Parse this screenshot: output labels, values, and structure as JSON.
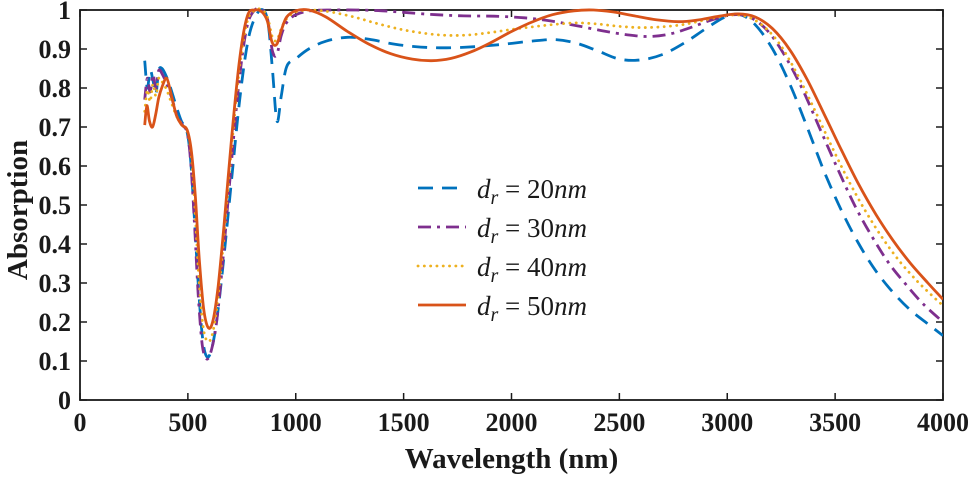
{
  "style": {
    "background": "#ffffff",
    "axis_color": "#1a1a1a",
    "text_color": "#1a1a1a"
  },
  "chart_data": {
    "type": "line",
    "title": "",
    "xlabel": "Wavelength (nm)",
    "ylabel": "Absorption",
    "xlim": [
      0,
      4000
    ],
    "ylim": [
      0,
      1
    ],
    "xticks": [
      0,
      500,
      1000,
      1500,
      2000,
      2500,
      3000,
      3500,
      4000
    ],
    "xtick_labels": [
      "0",
      "500",
      "1000",
      "1500",
      "2000",
      "2500",
      "3000",
      "3500",
      "4000"
    ],
    "yticks": [
      0,
      0.1,
      0.2,
      0.3,
      0.4,
      0.5,
      0.6,
      0.7,
      0.8,
      0.9,
      1
    ],
    "ytick_labels": [
      "0",
      "0.1",
      "0.2",
      "0.3",
      "0.4",
      "0.5",
      "0.6",
      "0.7",
      "0.8",
      "0.9",
      "1"
    ],
    "grid": false,
    "legend": {
      "border": false,
      "position": "center"
    },
    "series": [
      {
        "id": "dr-20nm",
        "name": "dr = 20nm",
        "color": "#0072BD",
        "style": "dashed",
        "legend": {
          "symbol": "d",
          "subscript": "r",
          "number": "20",
          "unit": "nm"
        },
        "points": [
          [
            300,
            0.87
          ],
          [
            312,
            0.8
          ],
          [
            325,
            0.845
          ],
          [
            338,
            0.82
          ],
          [
            352,
            0.785
          ],
          [
            365,
            0.845
          ],
          [
            380,
            0.85
          ],
          [
            400,
            0.83
          ],
          [
            420,
            0.8
          ],
          [
            445,
            0.755
          ],
          [
            470,
            0.715
          ],
          [
            495,
            0.69
          ],
          [
            512,
            0.62
          ],
          [
            530,
            0.47
          ],
          [
            550,
            0.28
          ],
          [
            570,
            0.15
          ],
          [
            590,
            0.11
          ],
          [
            612,
            0.135
          ],
          [
            635,
            0.21
          ],
          [
            662,
            0.34
          ],
          [
            700,
            0.55
          ],
          [
            740,
            0.77
          ],
          [
            778,
            0.92
          ],
          [
            815,
            0.985
          ],
          [
            848,
            1.0
          ],
          [
            872,
            0.965
          ],
          [
            893,
            0.84
          ],
          [
            913,
            0.715
          ],
          [
            933,
            0.78
          ],
          [
            958,
            0.855
          ],
          [
            1000,
            0.875
          ],
          [
            1060,
            0.9
          ],
          [
            1140,
            0.92
          ],
          [
            1240,
            0.93
          ],
          [
            1340,
            0.925
          ],
          [
            1460,
            0.912
          ],
          [
            1580,
            0.905
          ],
          [
            1700,
            0.903
          ],
          [
            1830,
            0.906
          ],
          [
            1960,
            0.912
          ],
          [
            2090,
            0.92
          ],
          [
            2200,
            0.924
          ],
          [
            2300,
            0.915
          ],
          [
            2400,
            0.895
          ],
          [
            2500,
            0.874
          ],
          [
            2600,
            0.872
          ],
          [
            2700,
            0.886
          ],
          [
            2800,
            0.915
          ],
          [
            2900,
            0.952
          ],
          [
            2990,
            0.982
          ],
          [
            3060,
            0.988
          ],
          [
            3130,
            0.962
          ],
          [
            3210,
            0.9
          ],
          [
            3290,
            0.81
          ],
          [
            3370,
            0.7
          ],
          [
            3450,
            0.585
          ],
          [
            3530,
            0.485
          ],
          [
            3610,
            0.4
          ],
          [
            3690,
            0.33
          ],
          [
            3770,
            0.275
          ],
          [
            3850,
            0.23
          ],
          [
            3930,
            0.195
          ],
          [
            4000,
            0.165
          ]
        ]
      },
      {
        "id": "dr-30nm",
        "name": "dr = 30nm",
        "color": "#7E2F8E",
        "style": "dash-dot",
        "legend": {
          "symbol": "d",
          "subscript": "r",
          "number": "30",
          "unit": "nm"
        },
        "points": [
          [
            300,
            0.77
          ],
          [
            312,
            0.825
          ],
          [
            325,
            0.79
          ],
          [
            338,
            0.835
          ],
          [
            352,
            0.8
          ],
          [
            365,
            0.845
          ],
          [
            382,
            0.835
          ],
          [
            402,
            0.81
          ],
          [
            425,
            0.775
          ],
          [
            450,
            0.73
          ],
          [
            475,
            0.705
          ],
          [
            497,
            0.685
          ],
          [
            513,
            0.61
          ],
          [
            530,
            0.46
          ],
          [
            548,
            0.27
          ],
          [
            567,
            0.14
          ],
          [
            588,
            0.105
          ],
          [
            610,
            0.13
          ],
          [
            633,
            0.2
          ],
          [
            660,
            0.345
          ],
          [
            698,
            0.585
          ],
          [
            736,
            0.81
          ],
          [
            773,
            0.955
          ],
          [
            810,
            1.0
          ],
          [
            845,
            1.0
          ],
          [
            870,
            0.975
          ],
          [
            892,
            0.895
          ],
          [
            912,
            0.885
          ],
          [
            933,
            0.935
          ],
          [
            958,
            0.968
          ],
          [
            1000,
            0.988
          ],
          [
            1070,
            0.998
          ],
          [
            1160,
            1.0
          ],
          [
            1280,
            1.0
          ],
          [
            1400,
            0.998
          ],
          [
            1520,
            0.993
          ],
          [
            1650,
            0.988
          ],
          [
            1780,
            0.985
          ],
          [
            1920,
            0.984
          ],
          [
            2060,
            0.98
          ],
          [
            2180,
            0.972
          ],
          [
            2300,
            0.96
          ],
          [
            2420,
            0.947
          ],
          [
            2530,
            0.937
          ],
          [
            2630,
            0.932
          ],
          [
            2730,
            0.938
          ],
          [
            2830,
            0.955
          ],
          [
            2930,
            0.975
          ],
          [
            3030,
            0.988
          ],
          [
            3110,
            0.98
          ],
          [
            3190,
            0.945
          ],
          [
            3270,
            0.88
          ],
          [
            3350,
            0.795
          ],
          [
            3430,
            0.695
          ],
          [
            3510,
            0.595
          ],
          [
            3590,
            0.5
          ],
          [
            3670,
            0.42
          ],
          [
            3750,
            0.35
          ],
          [
            3830,
            0.295
          ],
          [
            3910,
            0.245
          ],
          [
            4000,
            0.2
          ]
        ]
      },
      {
        "id": "dr-40nm",
        "name": "dr = 40nm",
        "color": "#EDB120",
        "style": "dotted",
        "legend": {
          "symbol": "d",
          "subscript": "r",
          "number": "40",
          "unit": "nm"
        },
        "points": [
          [
            300,
            0.74
          ],
          [
            312,
            0.795
          ],
          [
            325,
            0.765
          ],
          [
            338,
            0.81
          ],
          [
            352,
            0.78
          ],
          [
            365,
            0.825
          ],
          [
            382,
            0.815
          ],
          [
            402,
            0.795
          ],
          [
            425,
            0.76
          ],
          [
            450,
            0.725
          ],
          [
            475,
            0.705
          ],
          [
            497,
            0.69
          ],
          [
            515,
            0.63
          ],
          [
            532,
            0.5
          ],
          [
            550,
            0.32
          ],
          [
            570,
            0.19
          ],
          [
            592,
            0.15
          ],
          [
            614,
            0.17
          ],
          [
            637,
            0.25
          ],
          [
            664,
            0.4
          ],
          [
            700,
            0.63
          ],
          [
            738,
            0.845
          ],
          [
            775,
            0.97
          ],
          [
            812,
            1.0
          ],
          [
            845,
            1.0
          ],
          [
            870,
            0.98
          ],
          [
            892,
            0.93
          ],
          [
            912,
            0.922
          ],
          [
            933,
            0.952
          ],
          [
            958,
            0.978
          ],
          [
            1000,
            0.995
          ],
          [
            1070,
            1.0
          ],
          [
            1160,
            0.995
          ],
          [
            1270,
            0.982
          ],
          [
            1380,
            0.965
          ],
          [
            1490,
            0.95
          ],
          [
            1600,
            0.94
          ],
          [
            1700,
            0.935
          ],
          [
            1800,
            0.936
          ],
          [
            1900,
            0.942
          ],
          [
            2000,
            0.95
          ],
          [
            2100,
            0.957
          ],
          [
            2200,
            0.963
          ],
          [
            2300,
            0.967
          ],
          [
            2400,
            0.964
          ],
          [
            2500,
            0.958
          ],
          [
            2600,
            0.955
          ],
          [
            2700,
            0.957
          ],
          [
            2800,
            0.963
          ],
          [
            2900,
            0.975
          ],
          [
            3000,
            0.986
          ],
          [
            3080,
            0.985
          ],
          [
            3160,
            0.962
          ],
          [
            3240,
            0.915
          ],
          [
            3320,
            0.84
          ],
          [
            3400,
            0.75
          ],
          [
            3480,
            0.655
          ],
          [
            3560,
            0.565
          ],
          [
            3640,
            0.485
          ],
          [
            3720,
            0.415
          ],
          [
            3800,
            0.355
          ],
          [
            3880,
            0.305
          ],
          [
            3960,
            0.262
          ],
          [
            4000,
            0.242
          ]
        ]
      },
      {
        "id": "dr-50nm",
        "name": "dr = 50nm",
        "color": "#D95319",
        "style": "solid",
        "legend": {
          "symbol": "d",
          "subscript": "r",
          "number": "50",
          "unit": "nm"
        },
        "points": [
          [
            300,
            0.705
          ],
          [
            310,
            0.755
          ],
          [
            322,
            0.715
          ],
          [
            336,
            0.7
          ],
          [
            350,
            0.73
          ],
          [
            365,
            0.775
          ],
          [
            382,
            0.805
          ],
          [
            402,
            0.825
          ],
          [
            422,
            0.785
          ],
          [
            447,
            0.73
          ],
          [
            472,
            0.705
          ],
          [
            497,
            0.692
          ],
          [
            517,
            0.635
          ],
          [
            535,
            0.52
          ],
          [
            553,
            0.36
          ],
          [
            573,
            0.235
          ],
          [
            595,
            0.185
          ],
          [
            617,
            0.205
          ],
          [
            640,
            0.29
          ],
          [
            668,
            0.45
          ],
          [
            704,
            0.68
          ],
          [
            740,
            0.875
          ],
          [
            776,
            0.985
          ],
          [
            812,
            1.0
          ],
          [
            843,
            0.995
          ],
          [
            868,
            0.972
          ],
          [
            890,
            0.918
          ],
          [
            912,
            0.912
          ],
          [
            933,
            0.948
          ],
          [
            958,
            0.982
          ],
          [
            1000,
            0.998
          ],
          [
            1060,
            1.0
          ],
          [
            1140,
            0.982
          ],
          [
            1240,
            0.945
          ],
          [
            1340,
            0.912
          ],
          [
            1440,
            0.888
          ],
          [
            1540,
            0.874
          ],
          [
            1630,
            0.87
          ],
          [
            1720,
            0.876
          ],
          [
            1810,
            0.892
          ],
          [
            1900,
            0.915
          ],
          [
            1990,
            0.942
          ],
          [
            2090,
            0.968
          ],
          [
            2190,
            0.988
          ],
          [
            2290,
            0.998
          ],
          [
            2380,
            1.0
          ],
          [
            2470,
            0.995
          ],
          [
            2570,
            0.985
          ],
          [
            2670,
            0.975
          ],
          [
            2770,
            0.97
          ],
          [
            2860,
            0.974
          ],
          [
            2950,
            0.983
          ],
          [
            3050,
            0.99
          ],
          [
            3130,
            0.982
          ],
          [
            3210,
            0.952
          ],
          [
            3290,
            0.898
          ],
          [
            3370,
            0.822
          ],
          [
            3450,
            0.732
          ],
          [
            3530,
            0.64
          ],
          [
            3610,
            0.552
          ],
          [
            3690,
            0.475
          ],
          [
            3770,
            0.408
          ],
          [
            3850,
            0.35
          ],
          [
            3930,
            0.3
          ],
          [
            4000,
            0.258
          ]
        ]
      }
    ]
  }
}
